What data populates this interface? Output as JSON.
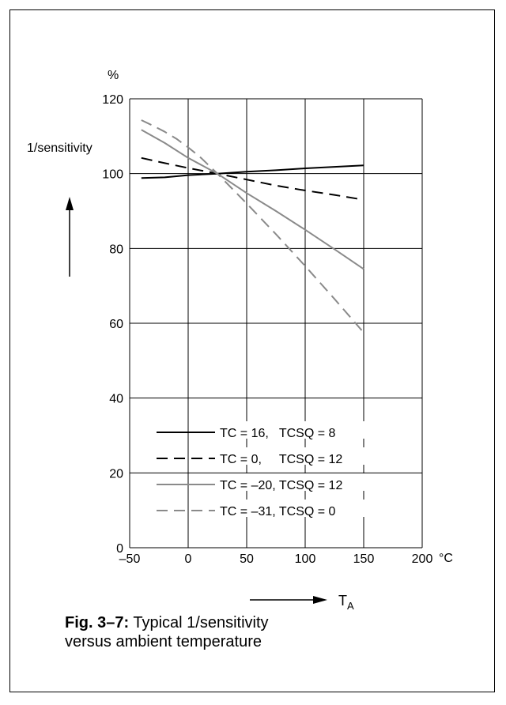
{
  "chart_data": {
    "type": "line",
    "y_unit": "%",
    "ylabel": "1/sensitivity",
    "xlabel_symbol": "T",
    "xlabel_subscript": "A",
    "x_unit": "°C",
    "xlim": [
      -50,
      200
    ],
    "ylim": [
      0,
      120
    ],
    "xticks": [
      -50,
      0,
      50,
      100,
      150,
      200
    ],
    "yticks": [
      0,
      20,
      40,
      60,
      80,
      100,
      120
    ],
    "xtick_labels": [
      "–50",
      "0",
      "50",
      "100",
      "150",
      "200"
    ],
    "ytick_labels": [
      "0",
      "20",
      "40",
      "60",
      "80",
      "100",
      "120"
    ],
    "grid": true,
    "legend_position": "bottom-left",
    "series": [
      {
        "name": "TC = 16,   TCSQ = 8",
        "color": "#000000",
        "dash": "solid",
        "x": [
          -40,
          -20,
          0,
          25,
          50,
          75,
          100,
          125,
          150
        ],
        "y": [
          98.8,
          99.0,
          99.6,
          100.0,
          100.5,
          100.9,
          101.4,
          101.8,
          102.2
        ]
      },
      {
        "name": "TC = 0,     TCSQ = 12",
        "color": "#000000",
        "dash": "dashed",
        "x": [
          -40,
          -20,
          0,
          25,
          50,
          75,
          100,
          125,
          150
        ],
        "y": [
          104.2,
          102.8,
          101.5,
          100.0,
          98.4,
          96.8,
          95.5,
          94.3,
          93.0
        ]
      },
      {
        "name": "TC = –20, TCSQ = 12",
        "color": "#8a8a8a",
        "dash": "solid",
        "x": [
          -40,
          -20,
          0,
          25,
          50,
          75,
          100,
          125,
          150
        ],
        "y": [
          111.7,
          108.2,
          104.2,
          100.0,
          94.8,
          90.0,
          85.0,
          79.8,
          74.5
        ]
      },
      {
        "name": "TC = –31, TCSQ = 0",
        "color": "#8a8a8a",
        "dash": "dashed",
        "x": [
          -40,
          -30,
          -20,
          -10,
          0,
          10,
          25,
          50,
          75,
          100,
          125,
          150
        ],
        "y": [
          114.3,
          112.8,
          111.2,
          109.3,
          107.0,
          104.5,
          100.0,
          92.0,
          83.8,
          75.3,
          66.5,
          57.5
        ]
      }
    ]
  },
  "caption": {
    "label": "Fig. 3–7:",
    "line1": " Typical 1/sensitivity",
    "line2": "versus ambient temperature"
  }
}
